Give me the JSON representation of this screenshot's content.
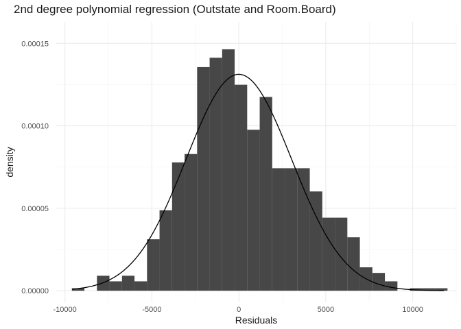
{
  "chart_data": {
    "type": "bar",
    "title": "2nd degree polynomial regression (Outstate and Room.Board)",
    "xlabel": "Residuals",
    "ylabel": "density",
    "xlim": [
      -10500,
      12500
    ],
    "ylim": [
      -7e-06,
      0.000163
    ],
    "x_ticks": [
      {
        "value": -10000,
        "label": "-10000"
      },
      {
        "value": -5000,
        "label": "-5000"
      },
      {
        "value": 0,
        "label": "0"
      },
      {
        "value": 5000,
        "label": "5000"
      },
      {
        "value": 10000,
        "label": "10000"
      }
    ],
    "y_ticks": [
      {
        "value": 0,
        "label": "0.00000"
      },
      {
        "value": 5e-05,
        "label": "0.00005"
      },
      {
        "value": 0.0001,
        "label": "0.00010"
      },
      {
        "value": 0.00015,
        "label": "0.00015"
      }
    ],
    "grid": true,
    "histogram": {
      "bins": [
        {
          "x0": -9600,
          "x1": -8880,
          "density": 1.5e-06
        },
        {
          "x0": -8880,
          "x1": -8160,
          "density": 0.0
        },
        {
          "x0": -8160,
          "x1": -7440,
          "density": 9.1e-06
        },
        {
          "x0": -7440,
          "x1": -6720,
          "density": 5.7e-06
        },
        {
          "x0": -6720,
          "x1": -6000,
          "density": 9.1e-06
        },
        {
          "x0": -6000,
          "x1": -5280,
          "density": 5.7e-06
        },
        {
          "x0": -5280,
          "x1": -4560,
          "density": 3.12e-05
        },
        {
          "x0": -4560,
          "x1": -3840,
          "density": 4.88e-05
        },
        {
          "x0": -3840,
          "x1": -3120,
          "density": 7.78e-05
        },
        {
          "x0": -3120,
          "x1": -2400,
          "density": 8.29e-05
        },
        {
          "x0": -2400,
          "x1": -1680,
          "density": 0.0001356
        },
        {
          "x0": -1680,
          "x1": -960,
          "density": 0.0001413
        },
        {
          "x0": -960,
          "x1": -240,
          "density": 0.0001464
        },
        {
          "x0": -240,
          "x1": 480,
          "density": 0.0001249
        },
        {
          "x0": 480,
          "x1": 1200,
          "density": 9.76e-05
        },
        {
          "x0": 1200,
          "x1": 1920,
          "density": 0.0001175
        },
        {
          "x0": 1920,
          "x1": 2640,
          "density": 7.43e-05
        },
        {
          "x0": 2640,
          "x1": 3360,
          "density": 7.43e-05
        },
        {
          "x0": 3360,
          "x1": 4080,
          "density": 7.43e-05
        },
        {
          "x0": 4080,
          "x1": 4800,
          "density": 6.02e-05
        },
        {
          "x0": 4800,
          "x1": 5520,
          "density": 4.43e-05
        },
        {
          "x0": 5520,
          "x1": 6240,
          "density": 4.43e-05
        },
        {
          "x0": 6240,
          "x1": 6960,
          "density": 3.24e-05
        },
        {
          "x0": 6960,
          "x1": 7680,
          "density": 1.42e-05
        },
        {
          "x0": 7680,
          "x1": 8400,
          "density": 1.08e-05
        },
        {
          "x0": 8400,
          "x1": 9120,
          "density": 5.7e-06
        },
        {
          "x0": 9120,
          "x1": 9840,
          "density": 0.0
        },
        {
          "x0": 9840,
          "x1": 10560,
          "density": 1.5e-06
        },
        {
          "x0": 10560,
          "x1": 11280,
          "density": 1.5e-06
        },
        {
          "x0": 11280,
          "x1": 12000,
          "density": 1.5e-06
        }
      ],
      "color": "#474747"
    },
    "normal_curve": {
      "mean": 0,
      "sd": 3040,
      "x_range": [
        -9600,
        11800
      ],
      "color": "#000000"
    }
  }
}
